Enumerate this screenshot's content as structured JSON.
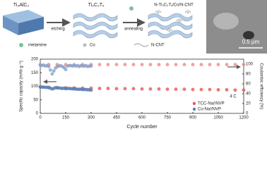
{
  "schematic": {
    "steps": [
      "Ti₃AlC₂",
      "Ti₃C₂Tₓ",
      "N-Ti₃C₂Tₓ/Co/N-CNT"
    ],
    "arrows": [
      "etching",
      "annealing"
    ],
    "legend": [
      "melamine",
      "Co",
      "N-CNT"
    ],
    "scale_bar": "0.5 μm"
  },
  "chart_data": {
    "type": "scatter",
    "xlabel": "Cycle number",
    "ylabel": "Specific capacity (mAh g⁻¹)",
    "y2label": "Coulombic efficiency (%)",
    "annotation": "4 C",
    "xlim": [
      0,
      1200
    ],
    "xticks": [
      0,
      150,
      300,
      450,
      600,
      750,
      900,
      1050,
      1200
    ],
    "ylim": [
      0,
      200
    ],
    "yticks": [
      0,
      50,
      100,
      150,
      200
    ],
    "y2lim": [
      0,
      110
    ],
    "y2ticks": [
      0,
      20,
      40,
      60,
      80,
      100
    ],
    "legend": "lower right",
    "series": [
      {
        "name": "TCC-Na//NVP",
        "color": "#e8585a",
        "x": [
          0,
          50,
          100,
          150,
          200,
          250,
          300,
          350,
          400,
          450,
          500,
          550,
          600,
          650,
          700,
          750,
          800,
          850,
          900,
          950,
          1000,
          1050,
          1100,
          1150,
          1200
        ],
        "values": [
          97,
          96,
          95,
          94,
          94,
          93,
          93,
          92,
          92,
          91,
          91,
          91,
          90,
          90,
          90,
          89,
          89,
          89,
          88,
          88,
          88,
          87,
          87,
          86,
          86
        ]
      },
      {
        "name": "Cu-Na//NVP",
        "color": "#5b7fb5",
        "x": [
          0,
          10,
          20,
          30,
          40,
          50,
          60,
          70,
          80,
          90,
          100,
          110,
          120,
          130,
          140,
          150,
          160,
          170,
          180,
          190,
          200,
          210,
          220,
          230,
          240,
          250,
          260,
          270,
          280,
          290,
          300
        ],
        "values": [
          98,
          97,
          97,
          96,
          96,
          95,
          93,
          90,
          92,
          95,
          94,
          94,
          93,
          92,
          93,
          91,
          92,
          92,
          91,
          91,
          90,
          90,
          89,
          89,
          89,
          88,
          88,
          88,
          87,
          87,
          86
        ]
      },
      {
        "color": "#f08a8a",
        "axis": "y2",
        "x": [
          0,
          50,
          100,
          150,
          200,
          250,
          300,
          350,
          400,
          450,
          500,
          550,
          600,
          650,
          700,
          750,
          800,
          850,
          900,
          950,
          1000,
          1050,
          1100,
          1150,
          1200
        ],
        "values": [
          99,
          99,
          99,
          99,
          99,
          99,
          99,
          99,
          99,
          99,
          99,
          99,
          99,
          99,
          99,
          99,
          99,
          99,
          99,
          99,
          99,
          99,
          99,
          99,
          99
        ]
      },
      {
        "color": "#8aa2c8",
        "axis": "y2",
        "x": [
          0,
          10,
          20,
          30,
          40,
          50,
          60,
          70,
          80,
          90,
          100,
          110,
          120,
          130,
          140,
          150,
          160,
          170,
          180,
          190,
          200,
          210,
          220,
          230,
          240,
          250,
          260,
          270,
          280,
          290,
          300
        ],
        "values": [
          98,
          97,
          98,
          96,
          97,
          95,
          88,
          80,
          86,
          92,
          95,
          96,
          97,
          95,
          93,
          89,
          96,
          97,
          97,
          96,
          97,
          96,
          97,
          95,
          97,
          96,
          96,
          97,
          95,
          96,
          96
        ]
      }
    ]
  }
}
